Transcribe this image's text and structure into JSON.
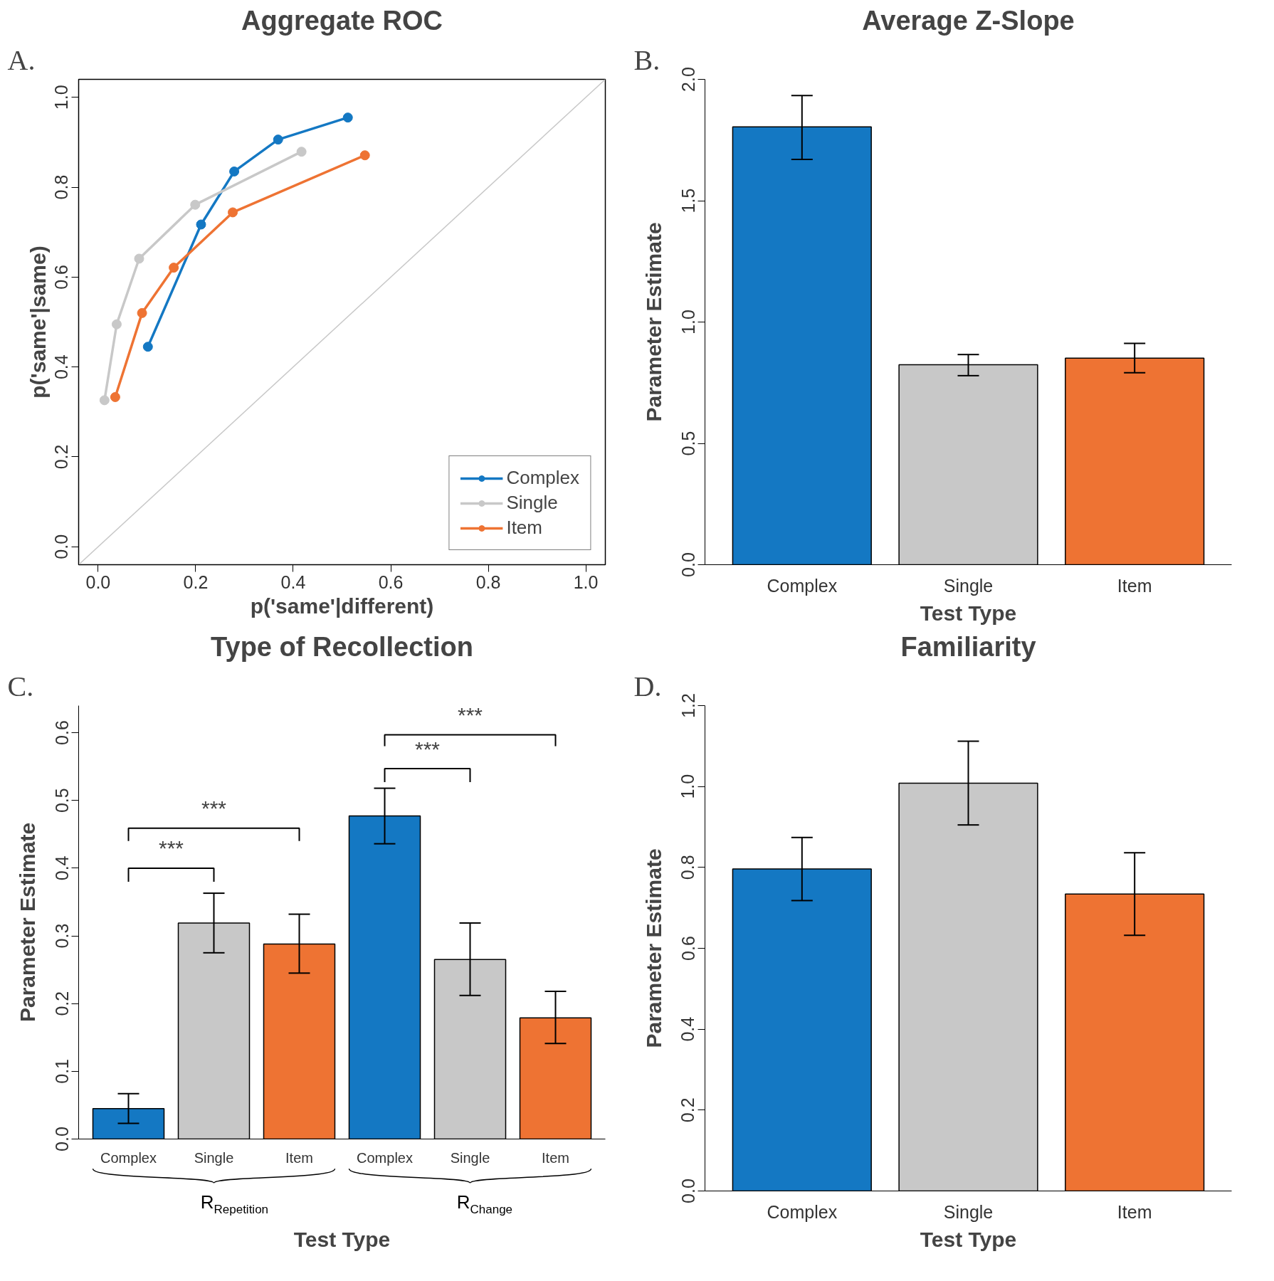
{
  "chart_data": [
    {
      "type": "line",
      "title": "Aggregate ROC",
      "xlabel": "p('same'|different)",
      "ylabel": "p('same'|same)",
      "annotations": [
        "A."
      ],
      "xlim": [
        -0.04,
        1.04
      ],
      "ylim": [
        -0.04,
        1.04
      ],
      "xticks": [
        {
          "value": 0,
          "label": "0.0"
        },
        0.2,
        0.4,
        0.6,
        0.8,
        {
          "value": 1,
          "label": "1.0"
        }
      ],
      "yticks": [
        {
          "value": 0,
          "label": "0.0"
        },
        0.2,
        0.4,
        0.6,
        0.8,
        {
          "value": 1,
          "label": "1.0"
        }
      ],
      "grid": false,
      "legend": "bottom right",
      "marker": "circle",
      "line_style": "solid",
      "series": [
        {
          "name": "Complex",
          "color": "#1478c3",
          "x": [
            0.102,
            0.211,
            0.279,
            0.369,
            0.512
          ],
          "values": [
            0.445,
            0.717,
            0.835,
            0.906,
            0.955
          ]
        },
        {
          "name": "Single",
          "color": "#c8c8c8",
          "x": [
            0.013,
            0.038,
            0.084,
            0.199,
            0.417
          ],
          "values": [
            0.326,
            0.495,
            0.641,
            0.761,
            0.879
          ]
        },
        {
          "name": "Item",
          "color": "#ee7333",
          "x": [
            0.035,
            0.09,
            0.155,
            0.276,
            0.547
          ],
          "values": [
            0.333,
            0.52,
            0.621,
            0.744,
            0.871
          ]
        },
        {
          "color": "#c8c8c8",
          "marker": "none",
          "x": [
            -0.04,
            1.04
          ],
          "values": [
            -0.04,
            1.04
          ]
        }
      ]
    },
    {
      "type": "bar",
      "title": "Average Z-Slope",
      "xlabel": "Test Type",
      "ylabel": "Parameter Estimate",
      "annotations": [
        "B."
      ],
      "categories": [
        "Complex",
        "Single",
        "Item"
      ],
      "values": [
        1.804,
        0.824,
        0.851
      ],
      "colors": [
        "#1478c3",
        "#c8c8c8",
        "#ee7333"
      ],
      "errors": [
        [
          1.67,
          1.933
        ],
        [
          0.779,
          0.866
        ],
        [
          0.791,
          0.912
        ]
      ],
      "ylim": [
        0,
        2
      ],
      "yticks": [
        {
          "value": 0,
          "label": "0.0"
        },
        0.5,
        {
          "value": 1,
          "label": "1.0"
        },
        1.5,
        {
          "value": 2,
          "label": "2.0"
        }
      ],
      "grid": false
    },
    {
      "type": "bar",
      "title": "Type of Recollection",
      "xlabel": "Test Type",
      "ylabel": "Parameter Estimate",
      "annotations": [
        "C.",
        "***",
        "***",
        "***",
        "***",
        "R$_{Repetition}$",
        "R$_{Change}$"
      ],
      "categories": [
        "Complex",
        "Single",
        "Item",
        "Complex",
        "Single",
        "Item"
      ],
      "values": [
        0.045,
        0.319,
        0.288,
        0.477,
        0.265,
        0.179
      ],
      "colors": [
        "#1478c3",
        "#c8c8c8",
        "#ee7333",
        "#1478c3",
        "#c8c8c8",
        "#ee7333"
      ],
      "errors": [
        [
          0.023,
          0.067
        ],
        [
          0.275,
          0.363
        ],
        [
          0.245,
          0.332
        ],
        [
          0.436,
          0.518
        ],
        [
          0.212,
          0.319
        ],
        [
          0.141,
          0.218
        ]
      ],
      "ylim": [
        0,
        0.64
      ],
      "yticks": [
        {
          "value": 0,
          "label": "0.0"
        },
        0.1,
        0.2,
        0.3,
        0.4,
        0.5,
        0.6
      ],
      "grid": false
    },
    {
      "type": "bar",
      "title": "Familiarity",
      "xlabel": "Test Type",
      "ylabel": "Parameter Estimate",
      "annotations": [
        "D."
      ],
      "categories": [
        "Complex",
        "Single",
        "Item"
      ],
      "values": [
        0.796,
        1.008,
        0.734
      ],
      "colors": [
        "#1478c3",
        "#c8c8c8",
        "#ee7333"
      ],
      "errors": [
        [
          0.718,
          0.874
        ],
        [
          0.905,
          1.112
        ],
        [
          0.632,
          0.836
        ]
      ],
      "ylim": [
        0,
        1.2
      ],
      "yticks": [
        {
          "value": 0,
          "label": "0.0"
        },
        0.2,
        0.4,
        0.6,
        0.8,
        {
          "value": 1,
          "label": "1.0"
        },
        1.2
      ],
      "grid": false
    }
  ]
}
